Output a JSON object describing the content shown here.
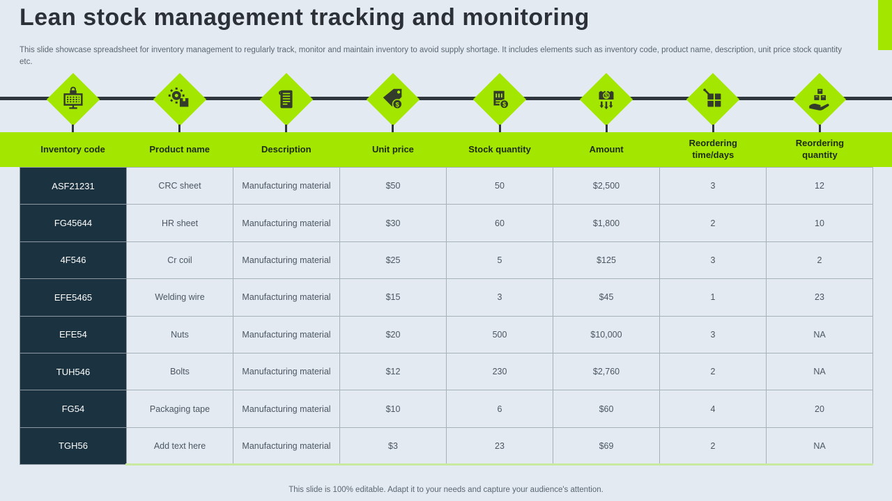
{
  "page": {
    "title": "Lean stock management tracking and monitoring",
    "subtitle": "This slide showcase spreadsheet for inventory management to regularly track,  monitor and maintain inventory to avoid supply shortage. It includes elements such as inventory code, product name, description, unit price stock quantity etc.",
    "footer": "This slide is 100% editable. Adapt it to your needs and capture your audience's attention."
  },
  "colors": {
    "accent_green": "#A3E600",
    "dark_navy": "#1B3240",
    "timeline_dark": "#2F363E",
    "pale_green_underline": "#C9E9A0",
    "background": "#E3EAF1",
    "icon_dark": "#333B2B"
  },
  "timeline": {
    "icons": [
      {
        "name": "monitor-lock-icon"
      },
      {
        "name": "gear-box-icon"
      },
      {
        "name": "document-icon"
      },
      {
        "name": "price-tag-dollar-icon"
      },
      {
        "name": "invoice-dollar-icon"
      },
      {
        "name": "money-arrows-icon"
      },
      {
        "name": "pallet-boxes-icon"
      },
      {
        "name": "hand-boxes-icon"
      }
    ]
  },
  "table": {
    "columns": [
      "Inventory code",
      "Product name",
      "Description",
      "Unit price",
      "Stock quantity",
      "Amount",
      "Reordering time/days",
      "Reordering quantity"
    ],
    "rows": [
      [
        "ASF21231",
        "CRC sheet",
        "Manufacturing material",
        "$50",
        "50",
        "$2,500",
        "3",
        "12"
      ],
      [
        "FG45644",
        "HR sheet",
        "Manufacturing material",
        "$30",
        "60",
        "$1,800",
        "2",
        "10"
      ],
      [
        "4F546",
        "Cr coil",
        "Manufacturing material",
        "$25",
        "5",
        "$125",
        "3",
        "2"
      ],
      [
        "EFE5465",
        "Welding wire",
        "Manufacturing material",
        "$15",
        "3",
        "$45",
        "1",
        "23"
      ],
      [
        "EFE54",
        "Nuts",
        "Manufacturing material",
        "$20",
        "500",
        "$10,000",
        "3",
        "NA"
      ],
      [
        "TUH546",
        "Bolts",
        "Manufacturing material",
        "$12",
        "230",
        "$2,760",
        "2",
        "NA"
      ],
      [
        "FG54",
        "Packaging tape",
        "Manufacturing material",
        "$10",
        "6",
        "$60",
        "4",
        "20"
      ],
      [
        "TGH56",
        "Add text here",
        "Manufacturing material",
        "$3",
        "23",
        "$69",
        "2",
        "NA"
      ]
    ]
  }
}
